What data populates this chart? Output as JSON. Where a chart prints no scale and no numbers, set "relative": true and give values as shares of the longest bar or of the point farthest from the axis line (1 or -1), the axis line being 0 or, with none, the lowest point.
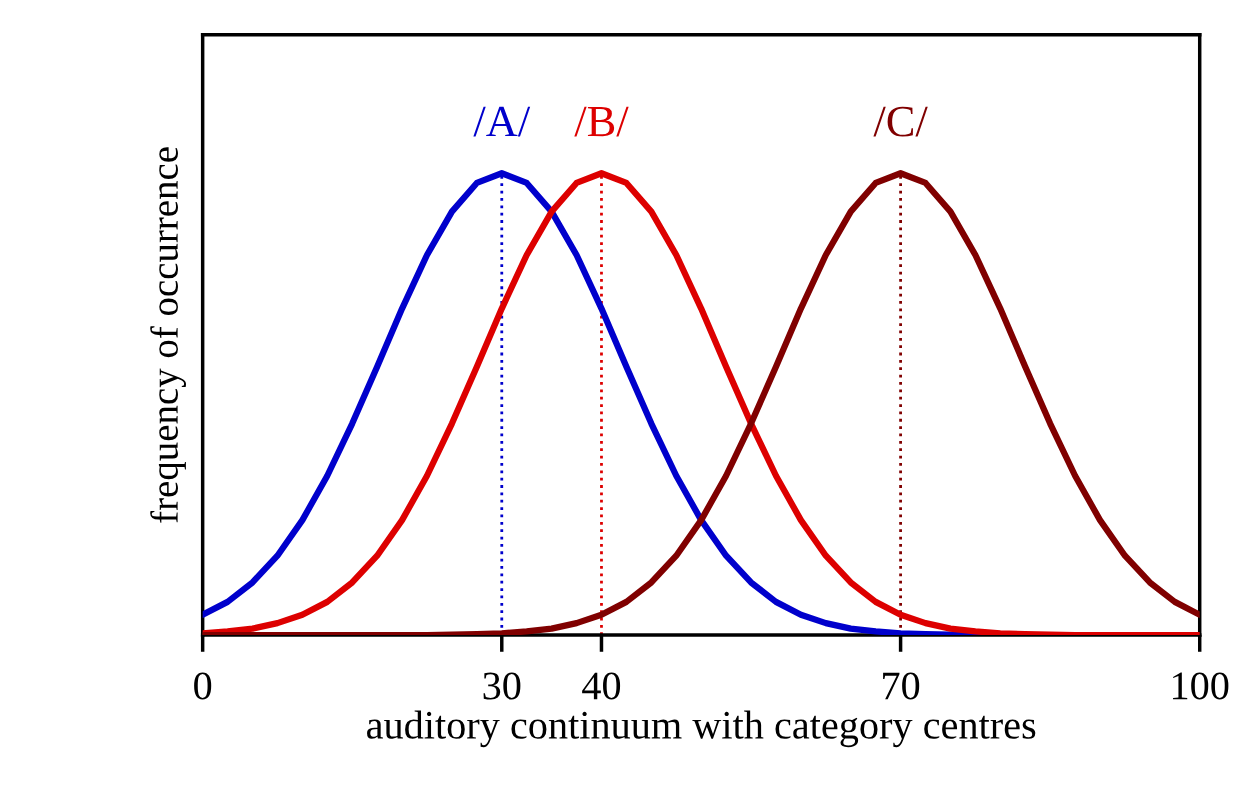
{
  "chart_data": {
    "type": "line",
    "relative": true,
    "xlabel": "auditory continuum with category centres",
    "ylabel": "frequency of occurrence",
    "x": [
      0,
      2.5,
      5,
      7.5,
      10,
      12.5,
      15,
      17.5,
      20,
      22.5,
      25,
      27.5,
      30,
      32.5,
      35,
      37.5,
      40,
      42.5,
      45,
      47.5,
      50,
      52.5,
      55,
      57.5,
      60,
      62.5,
      65,
      67.5,
      70,
      72.5,
      75,
      77.5,
      80,
      82.5,
      85,
      87.5,
      90,
      92.5,
      95,
      97.5,
      100
    ],
    "xlim": [
      0,
      100
    ],
    "xticks": [
      0,
      30,
      40,
      70,
      100
    ],
    "grid": false,
    "legend": false,
    "marker": "none",
    "line_style": "solid",
    "series": [
      {
        "name": "/A/",
        "color": "#0000cc",
        "values": [
          0.044,
          0.072,
          0.114,
          0.172,
          0.249,
          0.345,
          0.458,
          0.581,
          0.707,
          0.823,
          0.917,
          0.979,
          1,
          0.979,
          0.917,
          0.823,
          0.707,
          0.581,
          0.458,
          0.345,
          0.249,
          0.172,
          0.114,
          0.072,
          0.044,
          0.026,
          0.014,
          0.008,
          0.004,
          0.002,
          0.001,
          0,
          0,
          null,
          null,
          null,
          null,
          null,
          null,
          null,
          null
        ]
      },
      {
        "name": "/B/",
        "color": "#dd0000",
        "values": [
          0.004,
          0.008,
          0.014,
          0.026,
          0.044,
          0.072,
          0.114,
          0.172,
          0.249,
          0.345,
          0.458,
          0.581,
          0.707,
          0.823,
          0.917,
          0.979,
          1,
          0.979,
          0.917,
          0.823,
          0.707,
          0.581,
          0.458,
          0.345,
          0.249,
          0.172,
          0.114,
          0.072,
          0.044,
          0.026,
          0.014,
          0.008,
          0.004,
          0.002,
          0.001,
          0,
          0,
          0,
          0,
          0,
          0
        ]
      },
      {
        "name": "/C/",
        "color": "#800000",
        "values": [
          0,
          0,
          0,
          0,
          0,
          0,
          0,
          0,
          0,
          0,
          0.001,
          0.002,
          0.004,
          0.008,
          0.014,
          0.026,
          0.044,
          0.072,
          0.114,
          0.172,
          0.249,
          0.345,
          0.458,
          0.581,
          0.707,
          0.823,
          0.917,
          0.979,
          1,
          0.979,
          0.917,
          0.823,
          0.707,
          0.581,
          0.458,
          0.345,
          0.249,
          0.172,
          0.114,
          0.072,
          0.044
        ]
      }
    ],
    "ref_lines": [
      {
        "axis": "x",
        "value": 30,
        "color": "#0000cc",
        "line_style": "dotted"
      },
      {
        "axis": "x",
        "value": 40,
        "color": "#dd0000",
        "line_style": "dotted"
      },
      {
        "axis": "x",
        "value": 70,
        "color": "#800000",
        "line_style": "dotted"
      }
    ]
  }
}
